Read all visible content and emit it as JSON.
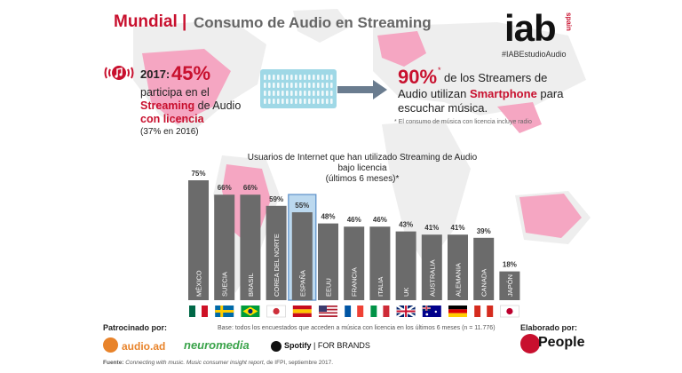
{
  "header": {
    "region": "Mundial",
    "separator": "|",
    "title": "Consumo de Audio en Streaming"
  },
  "logo": {
    "name": "iab",
    "suffix": "spain",
    "hashtag": "#IABEstudioAudio"
  },
  "left_stat": {
    "year": "2017:",
    "percent": "45%",
    "line1": "participa en el",
    "line2_bold": "Streaming",
    "line2_rest": " de Audio",
    "line3": "con licencia",
    "line4": "(37% en 2016)"
  },
  "right_stat": {
    "percent": "90%",
    "star": "*",
    "line1_rest": " de los Streamers de",
    "line2_start": "Audio utilizan ",
    "line2_bold": "Smartphone",
    "line2_end": " para",
    "line3": "escuchar música.",
    "note": "* El consumo de música con licencia incluye radio"
  },
  "chart_data": {
    "type": "bar",
    "title_lines": [
      "Usuarios de Internet que han utilizado Streaming de Audio",
      "bajo licencia",
      "(últimos 6 meses)*"
    ],
    "categories": [
      "MÉXICO",
      "SUECIA",
      "BRASIL",
      "COREA DEL NORTE",
      "ESPAÑA",
      "EEUU",
      "FRANCIA",
      "ITALIA",
      "UK",
      "AUSTRALIA",
      "ALEMANIA",
      "CANADA",
      "JAPÓN"
    ],
    "values": [
      75,
      66,
      66,
      59,
      55,
      48,
      46,
      46,
      43,
      41,
      41,
      39,
      18
    ],
    "value_labels": [
      "75%",
      "66%",
      "66%",
      "59%",
      "55%",
      "48%",
      "46%",
      "46%",
      "43%",
      "41%",
      "41%",
      "39%",
      "18%"
    ],
    "highlight_category": "ESPAÑA",
    "flag_icons": [
      "mexico-flag-icon",
      "sweden-flag-icon",
      "brazil-flag-icon",
      "south-korea-flag-icon",
      "spain-flag-icon",
      "usa-flag-icon",
      "france-flag-icon",
      "italy-flag-icon",
      "uk-flag-icon",
      "australia-flag-icon",
      "germany-flag-icon",
      "canada-flag-icon",
      "japan-flag-icon"
    ],
    "ylim": [
      0,
      80
    ],
    "colors": {
      "bar": "#6b6b6b",
      "highlight_box": "#bcd9ef",
      "highlight_border": "#5b8fc9",
      "accent": "#c8102e"
    }
  },
  "footer": {
    "sponsored_label": "Patrocinado por:",
    "base_note": "Base: todos los encuestados que acceden a música con licencia en los últimos 6 meses (n = 11.776)",
    "made_by_label": "Elaborado por:",
    "sponsors": [
      "audio.ad",
      "neuromedia",
      "Spotify",
      "| FOR BRANDS"
    ],
    "maker": "People",
    "source_label": "Fuente:",
    "source_text": "Connecting with music. Music consumer insight report",
    "source_rest": ", de IFPI, septiembre 2017."
  }
}
